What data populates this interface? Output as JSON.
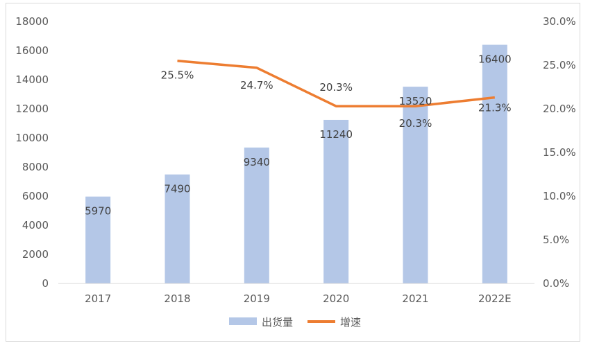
{
  "chart_data": {
    "type": "bar+line",
    "categories": [
      "2017",
      "2018",
      "2019",
      "2020",
      "2021",
      "2022E"
    ],
    "series": [
      {
        "name": "出货量",
        "type": "bar",
        "axis": "left",
        "values": [
          5970,
          7490,
          9340,
          11240,
          13520,
          16400
        ],
        "labels": [
          "5970",
          "7490",
          "9340",
          "11240",
          "13520",
          "16400"
        ],
        "color": "#b4c7e7"
      },
      {
        "name": "增速",
        "type": "line",
        "axis": "right",
        "values": [
          null,
          25.5,
          24.7,
          20.3,
          20.3,
          21.3
        ],
        "labels": [
          "",
          "25.5%",
          "24.7%",
          "20.3%",
          "20.3%",
          "21.3%"
        ],
        "color": "#ed7d31"
      }
    ],
    "y_left": {
      "range": [
        0,
        18000
      ],
      "ticks": [
        "0",
        "2000",
        "4000",
        "6000",
        "8000",
        "10000",
        "12000",
        "14000",
        "16000",
        "18000"
      ]
    },
    "y_right": {
      "range": [
        0,
        30
      ],
      "ticks": [
        "0.0%",
        "5.0%",
        "10.0%",
        "15.0%",
        "20.0%",
        "25.0%",
        "30.0%"
      ]
    },
    "grid": false,
    "legend": "bottom"
  }
}
